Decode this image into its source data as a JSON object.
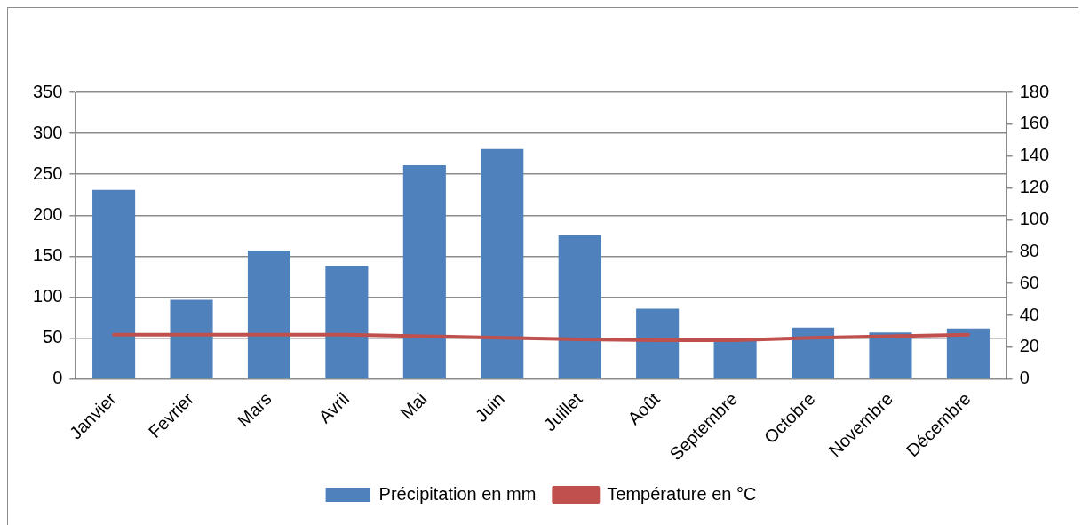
{
  "chart_data": {
    "type": "bar",
    "categories": [
      "Janvier",
      "Fevrier",
      "Mars",
      "Avril",
      "Mai",
      "Juin",
      "Juillet",
      "Août",
      "Septembre",
      "Octobre",
      "Novembre",
      "Décembre"
    ],
    "series": [
      {
        "name": "Précipitation en mm",
        "color": "#4f81bd",
        "values": [
          231,
          97,
          157,
          138,
          261,
          281,
          176,
          86,
          48,
          63,
          57,
          62
        ]
      },
      {
        "name": "Température en °C",
        "type": "line",
        "axis": "y2",
        "color": "#c0504d",
        "values": [
          28,
          28,
          28,
          28,
          27,
          26,
          25,
          24.5,
          24.5,
          26,
          27,
          28
        ]
      }
    ],
    "ylim": [
      0,
      350
    ],
    "yticks": [
      0,
      50,
      100,
      150,
      200,
      250,
      300,
      350
    ],
    "y2lim": [
      0,
      180
    ],
    "y2ticks": [
      0,
      20,
      40,
      60,
      80,
      100,
      120,
      140,
      160,
      180
    ],
    "grid": "y",
    "legend": "bottom",
    "marker": "none",
    "line_style": "solid"
  }
}
